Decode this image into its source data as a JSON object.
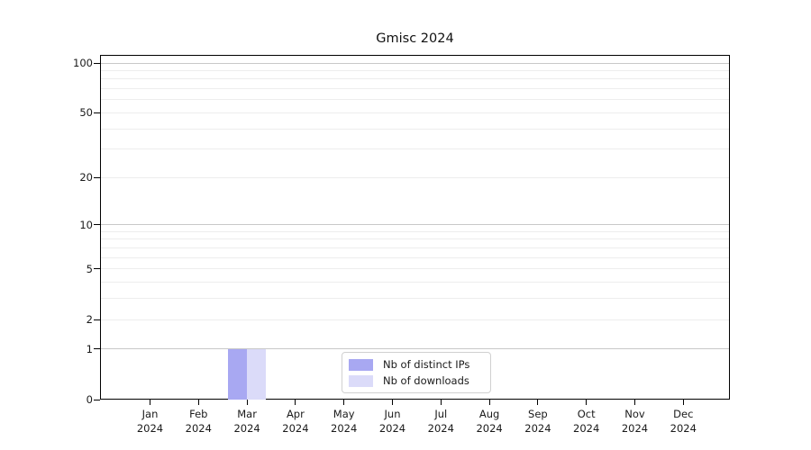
{
  "chart_data": {
    "type": "bar",
    "title": "Gmisc 2024",
    "categories": [
      "Jan 2024",
      "Feb 2024",
      "Mar 2024",
      "Apr 2024",
      "May 2024",
      "Jun 2024",
      "Jul 2024",
      "Aug 2024",
      "Sep 2024",
      "Oct 2024",
      "Nov 2024",
      "Dec 2024"
    ],
    "series": [
      {
        "name": "Nb of distinct IPs",
        "color": "#a8a8f2",
        "values": [
          0,
          0,
          1,
          0,
          0,
          0,
          0,
          0,
          0,
          0,
          0,
          0
        ]
      },
      {
        "name": "Nb of downloads",
        "color": "#dbdbf9",
        "values": [
          0,
          0,
          1,
          0,
          0,
          0,
          0,
          0,
          0,
          0,
          0,
          0
        ]
      }
    ],
    "yscale": "log1p",
    "ylim": [
      0,
      112
    ],
    "y_ticks": [
      0,
      1,
      2,
      5,
      10,
      20,
      50,
      100
    ],
    "grid": {
      "orientation": "horizontal",
      "major": [
        1,
        10,
        100
      ],
      "minor": [
        2,
        3,
        4,
        5,
        6,
        7,
        8,
        9,
        20,
        30,
        40,
        50,
        60,
        70,
        80,
        90
      ]
    },
    "legend_position": "lower center"
  },
  "colors": {
    "major_grid": "#c8c8c8",
    "minor_grid": "#ededed",
    "axis": "#000000",
    "text": "#1a1a1a"
  }
}
